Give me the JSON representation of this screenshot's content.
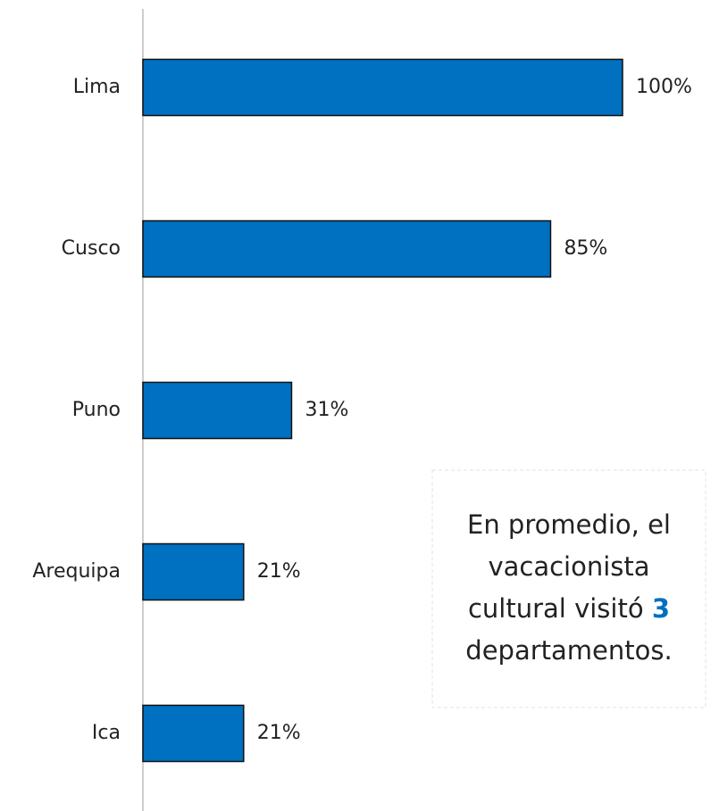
{
  "chart_data": {
    "type": "bar",
    "orientation": "horizontal",
    "categories": [
      "Lima",
      "Cusco",
      "Puno",
      "Arequipa",
      "Ica"
    ],
    "values": [
      100,
      85,
      31,
      21,
      21
    ],
    "value_labels": [
      "100%",
      "85%",
      "31%",
      "21%",
      "21%"
    ],
    "color": "#0070c0",
    "annotation": {
      "lines": [
        "En promedio, el",
        "vacacionista",
        "cultural visitó"
      ],
      "highlight": "3",
      "last": "departamentos."
    }
  }
}
